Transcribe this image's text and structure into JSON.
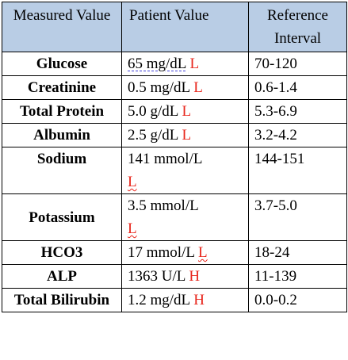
{
  "headers": {
    "analyte": "Measured Value",
    "patient": "Patient Value",
    "reference": "Reference Interval"
  },
  "rows": [
    {
      "analyte": "Glucose",
      "value": "65 mg/dL",
      "flag": "L",
      "reference": "70-120"
    },
    {
      "analyte": "Creatinine",
      "value": "0.5 mg/dL",
      "flag": "L",
      "reference": "0.6-1.4"
    },
    {
      "analyte": "Total Protein",
      "value": "5.0 g/dL",
      "flag": "L",
      "reference": "5.3-6.9"
    },
    {
      "analyte": "Albumin",
      "value": "2.5 g/dL",
      "flag": "L",
      "reference": "3.2-4.2"
    },
    {
      "analyte": "Sodium",
      "value": "141 mmol/L",
      "flag": "L",
      "reference": "144-151"
    },
    {
      "analyte": "Potassium",
      "value": "3.5 mmol/L",
      "flag": "L",
      "reference": "3.7-5.0"
    },
    {
      "analyte": "HCO3",
      "value": "17 mmol/L",
      "flag": "L",
      "reference": "18-24"
    },
    {
      "analyte": "ALP",
      "value": "1363 U/L",
      "flag": "H",
      "reference": "11-139"
    },
    {
      "analyte": "Total Bilirubin",
      "value": "1.2 mg/dL",
      "flag": "H",
      "reference": "0.0-0.2"
    }
  ],
  "colors": {
    "header_bg": "#b9cde5",
    "flag": "#e8251b"
  }
}
